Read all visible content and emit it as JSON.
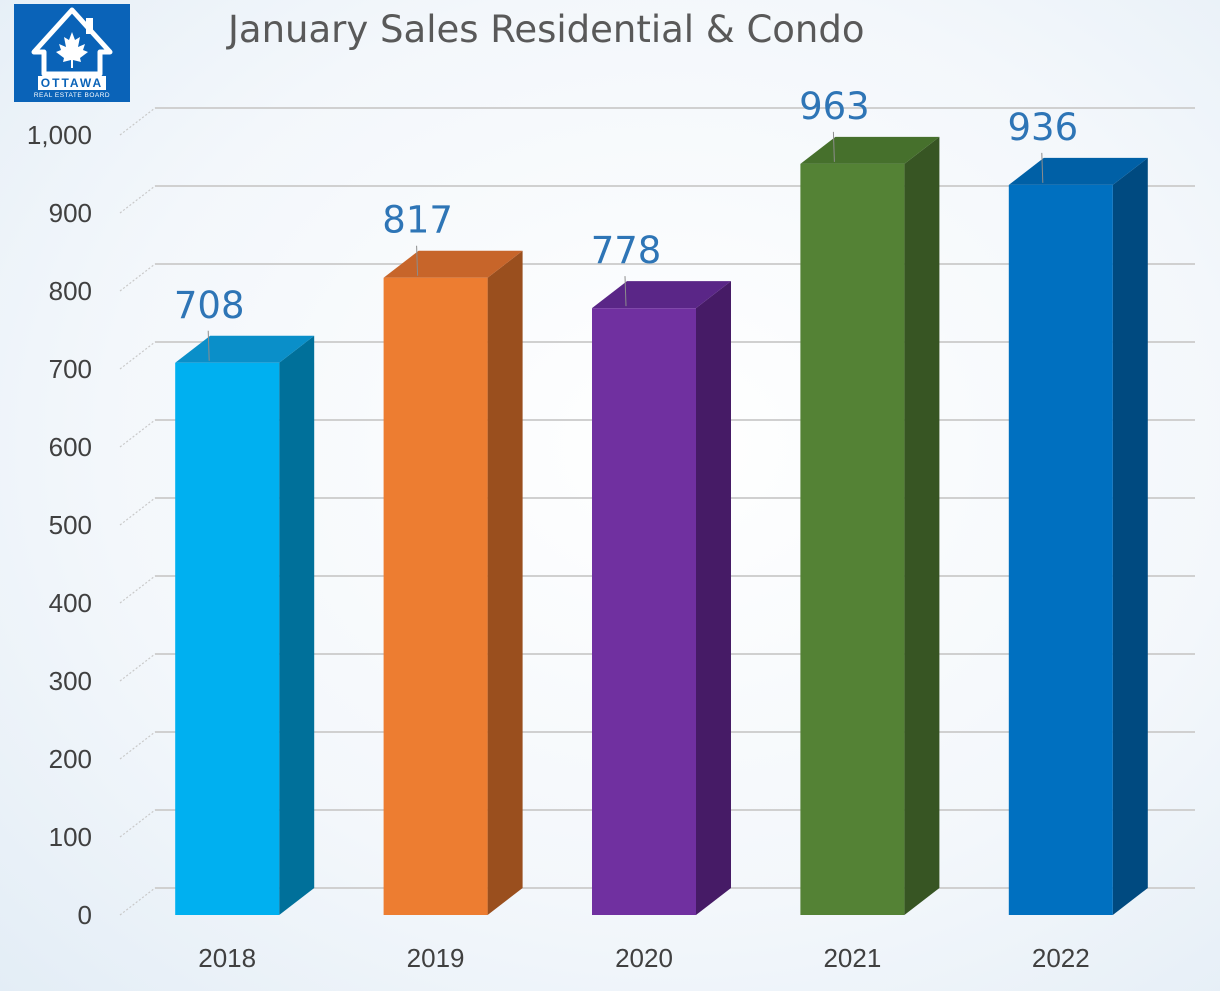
{
  "logo": {
    "line1": "OTTAWA",
    "line2": "REAL ESTATE BOARD",
    "color": "#0a63b8"
  },
  "chart_data": {
    "type": "bar",
    "title": "January Sales Residential & Condo",
    "categories": [
      "2018",
      "2019",
      "2020",
      "2021",
      "2022"
    ],
    "values": [
      708,
      817,
      778,
      963,
      936
    ],
    "data_labels": [
      "708",
      "817",
      "778",
      "963",
      "936"
    ],
    "y_ticks": [
      "0",
      "100",
      "200",
      "300",
      "400",
      "500",
      "600",
      "700",
      "800",
      "900",
      "1,000"
    ],
    "ylim": [
      0,
      1000
    ],
    "xlabel": "",
    "ylabel": "",
    "grid": true,
    "style": "3d-column",
    "bar_colors": [
      {
        "front": "#00b0f0",
        "side": "#00709a",
        "top": "#0a8fc9"
      },
      {
        "front": "#ed7d31",
        "side": "#9a4f1e",
        "top": "#c7652a"
      },
      {
        "front": "#7030a0",
        "side": "#461b66",
        "top": "#5a2687"
      },
      {
        "front": "#548235",
        "side": "#375523",
        "top": "#46702c"
      },
      {
        "front": "#0070c0",
        "side": "#004a80",
        "top": "#0060a6"
      }
    ],
    "label_color": "#2e75b6",
    "axis_text_color": "#404040"
  }
}
